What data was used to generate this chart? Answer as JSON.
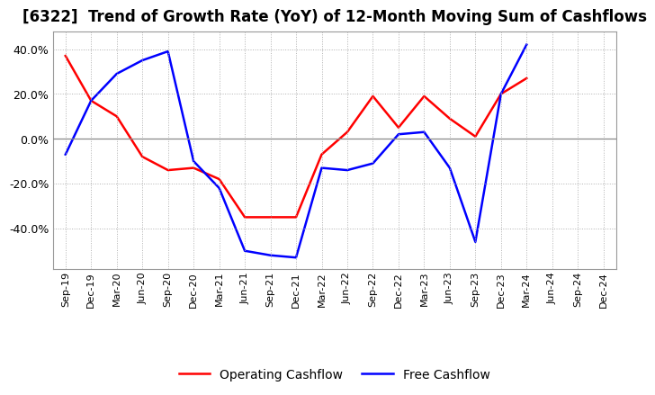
{
  "title": "[6322]  Trend of Growth Rate (YoY) of 12-Month Moving Sum of Cashflows",
  "x_labels": [
    "Sep-19",
    "Dec-19",
    "Mar-20",
    "Jun-20",
    "Sep-20",
    "Dec-20",
    "Mar-21",
    "Jun-21",
    "Sep-21",
    "Dec-21",
    "Mar-22",
    "Jun-22",
    "Sep-22",
    "Dec-22",
    "Mar-23",
    "Jun-23",
    "Sep-23",
    "Dec-23",
    "Mar-24",
    "Jun-24",
    "Sep-24",
    "Dec-24"
  ],
  "operating_cashflow": [
    37,
    17,
    10,
    -8,
    -14,
    -13,
    -18,
    -35,
    -35,
    -35,
    -7,
    3,
    19,
    5,
    19,
    9,
    1,
    20,
    27,
    null,
    null,
    null
  ],
  "free_cashflow": [
    -7,
    17,
    29,
    35,
    39,
    -10,
    -22,
    -50,
    -52,
    -53,
    -13,
    -14,
    -11,
    2,
    3,
    -13,
    -46,
    20,
    42,
    null,
    null,
    null
  ],
  "operating_color": "#ff0000",
  "free_color": "#0000ff",
  "ylim": [
    -58,
    48
  ],
  "yticks": [
    -40,
    -20,
    0,
    20,
    40
  ],
  "background_color": "#ffffff",
  "grid_color": "#b0b0b0",
  "title_fontsize": 12,
  "legend_labels": [
    "Operating Cashflow",
    "Free Cashflow"
  ]
}
